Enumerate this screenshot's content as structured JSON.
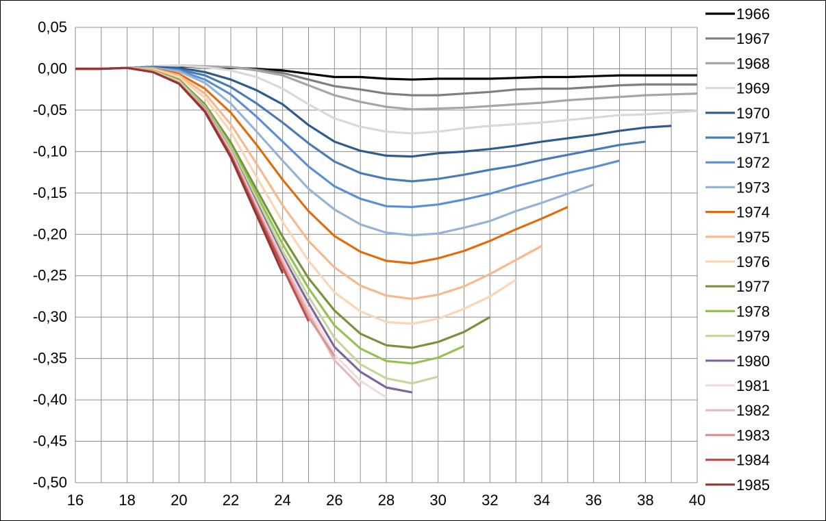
{
  "chart_data": {
    "type": "line",
    "title": "",
    "xlabel": "",
    "ylabel": "",
    "xlim": [
      16,
      40
    ],
    "ylim": [
      -0.5,
      0.05
    ],
    "x_ticks": [
      "16",
      "18",
      "20",
      "22",
      "24",
      "26",
      "28",
      "30",
      "32",
      "34",
      "36",
      "38",
      "40"
    ],
    "y_ticks": [
      "0,05",
      "0,00",
      "-0,05",
      "-0,10",
      "-0,15",
      "-0,20",
      "-0,25",
      "-0,30",
      "-0,35",
      "-0,40",
      "-0,45",
      "-0,50"
    ],
    "grid": true,
    "legend_position": "right",
    "series": [
      {
        "name": "1966",
        "color": "#000000",
        "x": [
          16,
          17,
          18,
          19,
          20,
          21,
          22,
          23,
          24,
          25,
          26,
          27,
          28,
          29,
          30,
          31,
          32,
          33,
          34,
          35,
          36,
          37,
          38,
          39,
          40
        ],
        "y": [
          0,
          0,
          0.001,
          0.003,
          0.003,
          0.002,
          0.001,
          0,
          -0.002,
          -0.006,
          -0.01,
          -0.01,
          -0.012,
          -0.013,
          -0.012,
          -0.012,
          -0.012,
          -0.011,
          -0.01,
          -0.01,
          -0.009,
          -0.008,
          -0.008,
          -0.008,
          -0.008
        ]
      },
      {
        "name": "1967",
        "color": "#7f7f7f",
        "x": [
          16,
          17,
          18,
          19,
          20,
          21,
          22,
          23,
          24,
          25,
          26,
          27,
          28,
          29,
          30,
          31,
          32,
          33,
          34,
          35,
          36,
          37,
          38,
          39,
          40
        ],
        "y": [
          0,
          0,
          0.001,
          0.003,
          0.004,
          0.003,
          0.002,
          -0.001,
          -0.005,
          -0.013,
          -0.021,
          -0.025,
          -0.03,
          -0.032,
          -0.032,
          -0.03,
          -0.028,
          -0.025,
          -0.024,
          -0.024,
          -0.022,
          -0.02,
          -0.019,
          -0.019,
          -0.019
        ]
      },
      {
        "name": "1968",
        "color": "#a6a6a6",
        "x": [
          16,
          17,
          18,
          19,
          20,
          21,
          22,
          23,
          24,
          25,
          26,
          27,
          28,
          29,
          30,
          31,
          32,
          33,
          34,
          35,
          36,
          37,
          38,
          39,
          40
        ],
        "y": [
          0,
          0,
          0.001,
          0.003,
          0.004,
          0.003,
          0.002,
          -0.002,
          -0.008,
          -0.02,
          -0.032,
          -0.04,
          -0.046,
          -0.049,
          -0.048,
          -0.047,
          -0.045,
          -0.043,
          -0.041,
          -0.038,
          -0.036,
          -0.034,
          -0.032,
          -0.031,
          -0.03
        ]
      },
      {
        "name": "1969",
        "color": "#d9d9d9",
        "x": [
          16,
          17,
          18,
          19,
          20,
          21,
          22,
          23,
          24,
          25,
          26,
          27,
          28,
          29,
          30,
          31,
          32,
          33,
          34,
          35,
          36,
          37,
          38,
          39,
          40
        ],
        "y": [
          0,
          0,
          0.001,
          0.003,
          0.004,
          0.002,
          -0.002,
          -0.01,
          -0.024,
          -0.043,
          -0.06,
          -0.07,
          -0.076,
          -0.078,
          -0.076,
          -0.072,
          -0.069,
          -0.067,
          -0.065,
          -0.062,
          -0.059,
          -0.056,
          -0.055,
          -0.053,
          -0.051
        ]
      },
      {
        "name": "1970",
        "color": "#2e5a8c",
        "x": [
          16,
          17,
          18,
          19,
          20,
          21,
          22,
          23,
          24,
          25,
          26,
          27,
          28,
          29,
          30,
          31,
          32,
          33,
          34,
          35,
          36,
          37,
          38,
          39
        ],
        "y": [
          0,
          0,
          0.001,
          0.002,
          0.001,
          -0.004,
          -0.013,
          -0.026,
          -0.043,
          -0.068,
          -0.088,
          -0.099,
          -0.105,
          -0.106,
          -0.102,
          -0.1,
          -0.097,
          -0.093,
          -0.088,
          -0.084,
          -0.08,
          -0.075,
          -0.071,
          -0.069
        ]
      },
      {
        "name": "1971",
        "color": "#4a7ab8",
        "x": [
          16,
          17,
          18,
          19,
          20,
          21,
          22,
          23,
          24,
          25,
          26,
          27,
          28,
          29,
          30,
          31,
          32,
          33,
          34,
          35,
          36,
          37,
          38
        ],
        "y": [
          0,
          0,
          0.001,
          0.001,
          -0.001,
          -0.008,
          -0.022,
          -0.042,
          -0.065,
          -0.09,
          -0.112,
          -0.126,
          -0.133,
          -0.136,
          -0.133,
          -0.128,
          -0.122,
          -0.117,
          -0.11,
          -0.104,
          -0.098,
          -0.092,
          -0.088
        ]
      },
      {
        "name": "1972",
        "color": "#5b8fd4",
        "x": [
          16,
          17,
          18,
          19,
          20,
          21,
          22,
          23,
          24,
          25,
          26,
          27,
          28,
          29,
          30,
          31,
          32,
          33,
          34,
          35,
          36,
          37
        ],
        "y": [
          0,
          0,
          0.001,
          0.001,
          -0.002,
          -0.013,
          -0.031,
          -0.058,
          -0.088,
          -0.118,
          -0.142,
          -0.157,
          -0.166,
          -0.167,
          -0.164,
          -0.158,
          -0.151,
          -0.142,
          -0.134,
          -0.126,
          -0.119,
          -0.111
        ]
      },
      {
        "name": "1973",
        "color": "#95b3d7",
        "x": [
          16,
          17,
          18,
          19,
          20,
          21,
          22,
          23,
          24,
          25,
          26,
          27,
          28,
          29,
          30,
          31,
          32,
          33,
          34,
          35,
          36
        ],
        "y": [
          0,
          0,
          0.001,
          0.001,
          -0.003,
          -0.017,
          -0.042,
          -0.076,
          -0.111,
          -0.145,
          -0.17,
          -0.188,
          -0.198,
          -0.201,
          -0.199,
          -0.192,
          -0.184,
          -0.172,
          -0.162,
          -0.151,
          -0.14
        ]
      },
      {
        "name": "1974",
        "color": "#e36c0a",
        "x": [
          16,
          17,
          18,
          19,
          20,
          21,
          22,
          23,
          24,
          25,
          26,
          27,
          28,
          29,
          30,
          31,
          32,
          33,
          34,
          35
        ],
        "y": [
          0,
          0,
          0.001,
          0,
          -0.006,
          -0.024,
          -0.053,
          -0.092,
          -0.134,
          -0.172,
          -0.202,
          -0.221,
          -0.232,
          -0.235,
          -0.229,
          -0.22,
          -0.208,
          -0.194,
          -0.181,
          -0.167
        ]
      },
      {
        "name": "1975",
        "color": "#f8b88b",
        "x": [
          16,
          17,
          18,
          19,
          20,
          21,
          22,
          23,
          24,
          25,
          26,
          27,
          28,
          29,
          30,
          31,
          32,
          33,
          34
        ],
        "y": [
          0,
          0,
          0.001,
          0,
          -0.008,
          -0.03,
          -0.067,
          -0.115,
          -0.165,
          -0.208,
          -0.24,
          -0.262,
          -0.274,
          -0.278,
          -0.273,
          -0.263,
          -0.248,
          -0.231,
          -0.214
        ]
      },
      {
        "name": "1976",
        "color": "#fcd5b4",
        "x": [
          16,
          17,
          18,
          19,
          20,
          21,
          22,
          23,
          24,
          25,
          26,
          27,
          28,
          29,
          30,
          31,
          32,
          33
        ],
        "y": [
          0,
          0,
          0.001,
          -0.001,
          -0.01,
          -0.035,
          -0.076,
          -0.131,
          -0.185,
          -0.232,
          -0.27,
          -0.293,
          -0.306,
          -0.308,
          -0.302,
          -0.29,
          -0.275,
          -0.255
        ]
      },
      {
        "name": "1977",
        "color": "#76933c",
        "x": [
          16,
          17,
          18,
          19,
          20,
          21,
          22,
          23,
          24,
          25,
          26,
          27,
          28,
          29,
          30,
          31,
          32
        ],
        "y": [
          0,
          0,
          0.001,
          -0.002,
          -0.013,
          -0.043,
          -0.089,
          -0.146,
          -0.203,
          -0.253,
          -0.292,
          -0.32,
          -0.334,
          -0.337,
          -0.33,
          -0.318,
          -0.3
        ]
      },
      {
        "name": "1978",
        "color": "#92c353",
        "x": [
          16,
          17,
          18,
          19,
          20,
          21,
          22,
          23,
          24,
          25,
          26,
          27,
          28,
          29,
          30,
          31
        ],
        "y": [
          0,
          0,
          0.001,
          -0.002,
          -0.014,
          -0.045,
          -0.093,
          -0.152,
          -0.212,
          -0.265,
          -0.31,
          -0.338,
          -0.353,
          -0.356,
          -0.349,
          -0.335
        ]
      },
      {
        "name": "1979",
        "color": "#c4d79b",
        "x": [
          16,
          17,
          18,
          19,
          20,
          21,
          22,
          23,
          24,
          25,
          26,
          27,
          28,
          29,
          30
        ],
        "y": [
          0,
          0,
          0.001,
          -0.003,
          -0.015,
          -0.047,
          -0.096,
          -0.157,
          -0.22,
          -0.275,
          -0.325,
          -0.357,
          -0.374,
          -0.38,
          -0.372
        ]
      },
      {
        "name": "1980",
        "color": "#8064a2",
        "x": [
          16,
          17,
          18,
          19,
          20,
          21,
          22,
          23,
          24,
          25,
          26,
          27,
          28,
          29
        ],
        "y": [
          0,
          0,
          0.001,
          -0.003,
          -0.016,
          -0.048,
          -0.099,
          -0.162,
          -0.226,
          -0.283,
          -0.336,
          -0.366,
          -0.385,
          -0.391
        ]
      },
      {
        "name": "1981",
        "color": "#f2dcdb",
        "x": [
          16,
          17,
          18,
          19,
          20,
          21,
          22,
          23,
          24,
          25,
          26,
          27,
          28
        ],
        "y": [
          0,
          0,
          0.001,
          -0.003,
          -0.016,
          -0.049,
          -0.1,
          -0.165,
          -0.23,
          -0.29,
          -0.345,
          -0.377,
          -0.397
        ]
      },
      {
        "name": "1982",
        "color": "#e6b9b8",
        "x": [
          16,
          17,
          18,
          19,
          20,
          21,
          22,
          23,
          24,
          25,
          26,
          27
        ],
        "y": [
          0,
          0,
          0.001,
          -0.003,
          -0.017,
          -0.05,
          -0.102,
          -0.167,
          -0.233,
          -0.295,
          -0.352,
          -0.384
        ]
      },
      {
        "name": "1983",
        "color": "#d99694",
        "x": [
          16,
          17,
          18,
          19,
          20,
          21,
          22,
          23,
          24,
          25,
          26
        ],
        "y": [
          0,
          0,
          0.001,
          -0.004,
          -0.017,
          -0.05,
          -0.103,
          -0.17,
          -0.237,
          -0.3,
          -0.347
        ]
      },
      {
        "name": "1984",
        "color": "#c0504d",
        "x": [
          16,
          17,
          18,
          19,
          20,
          21,
          22,
          23,
          24,
          25
        ],
        "y": [
          0,
          0,
          0.001,
          -0.004,
          -0.018,
          -0.051,
          -0.105,
          -0.173,
          -0.24,
          -0.305
        ]
      },
      {
        "name": "1985",
        "color": "#943634",
        "x": [
          16,
          17,
          18,
          19,
          20,
          21,
          22,
          23,
          24
        ],
        "y": [
          0,
          0,
          0.001,
          -0.004,
          -0.018,
          -0.052,
          -0.107,
          -0.177,
          -0.247
        ]
      }
    ]
  }
}
